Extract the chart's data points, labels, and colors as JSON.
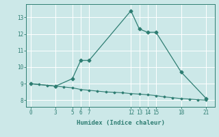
{
  "xlabel": "Humidex (Indice chaleur)",
  "ylabel": "",
  "bg_color": "#cce8e8",
  "line_color": "#2e7d72",
  "line1_x": [
    0,
    3,
    5,
    6,
    7,
    12,
    13,
    14,
    15,
    18,
    21
  ],
  "line1_y": [
    9.0,
    8.85,
    9.3,
    10.4,
    10.4,
    13.4,
    12.3,
    12.1,
    12.1,
    9.7,
    8.1
  ],
  "line2_x": [
    0,
    1,
    2,
    3,
    4,
    5,
    6,
    7,
    8,
    9,
    10,
    11,
    12,
    13,
    14,
    15,
    16,
    17,
    18,
    19,
    20,
    21
  ],
  "line2_y": [
    9.0,
    8.95,
    8.9,
    8.85,
    8.8,
    8.75,
    8.65,
    8.6,
    8.55,
    8.5,
    8.48,
    8.45,
    8.4,
    8.37,
    8.33,
    8.28,
    8.2,
    8.15,
    8.1,
    8.07,
    8.03,
    8.0
  ],
  "xticks": [
    0,
    3,
    5,
    6,
    7,
    12,
    13,
    14,
    15,
    18,
    21
  ],
  "yticks": [
    8,
    9,
    10,
    11,
    12,
    13
  ],
  "ylim": [
    7.6,
    13.8
  ],
  "xlim": [
    -0.5,
    22.0
  ]
}
